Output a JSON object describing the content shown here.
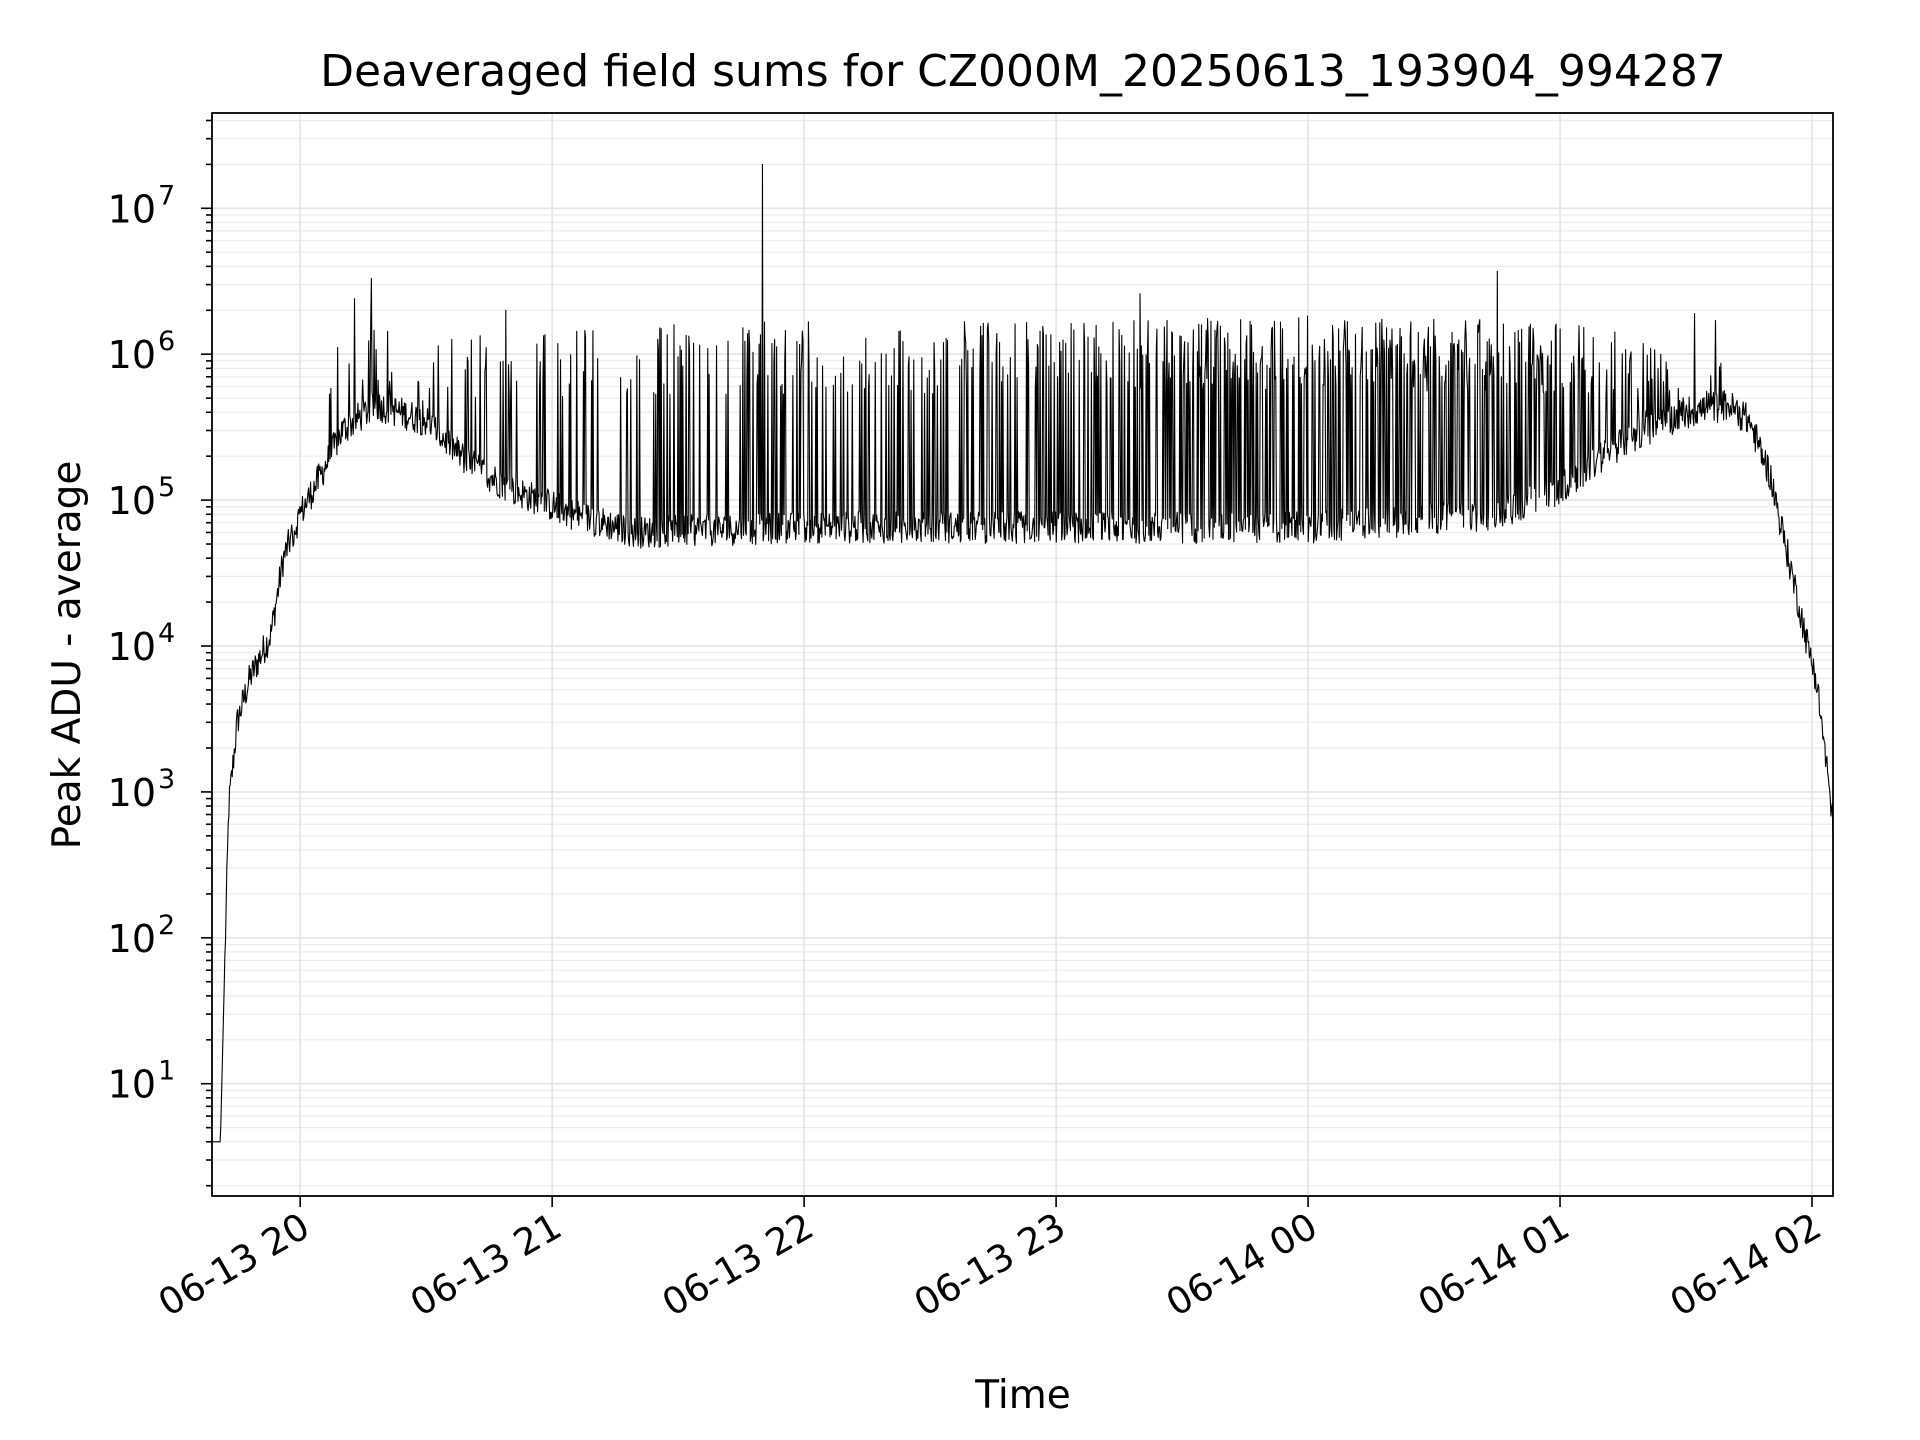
{
  "chart_data": {
    "type": "line",
    "title": "Deaveraged field sums for CZ000M_20250613_193904_994287",
    "xlabel": "Time",
    "ylabel": "Peak ADU - average",
    "yscale": "log",
    "grid": true,
    "line_color": "#000000",
    "xlim": [
      "2025-06-13 19:39",
      "2025-06-14 02:05"
    ],
    "ylim": [
      1.7,
      45000000
    ],
    "x_ticks": [
      {
        "t": "2025-06-13 20:00",
        "label": "06-13 20"
      },
      {
        "t": "2025-06-13 21:00",
        "label": "06-13 21"
      },
      {
        "t": "2025-06-13 22:00",
        "label": "06-13 22"
      },
      {
        "t": "2025-06-13 23:00",
        "label": "06-13 23"
      },
      {
        "t": "2025-06-14 00:00",
        "label": "06-14 00"
      },
      {
        "t": "2025-06-14 01:00",
        "label": "06-14 01"
      },
      {
        "t": "2025-06-14 02:00",
        "label": "06-14 02"
      }
    ],
    "y_ticks": [
      {
        "value": 10,
        "base": "10",
        "exp": "1"
      },
      {
        "value": 100,
        "base": "10",
        "exp": "2"
      },
      {
        "value": 1000,
        "base": "10",
        "exp": "3"
      },
      {
        "value": 10000,
        "base": "10",
        "exp": "4"
      },
      {
        "value": 100000,
        "base": "10",
        "exp": "5"
      },
      {
        "value": 1000000,
        "base": "10",
        "exp": "6"
      },
      {
        "value": 10000000,
        "base": "10",
        "exp": "7"
      }
    ],
    "envelope": [
      {
        "t": "2025-06-13 19:39",
        "y": 4
      },
      {
        "t": "2025-06-13 19:41",
        "y": 4
      },
      {
        "t": "2025-06-13 19:42",
        "y": 60
      },
      {
        "t": "2025-06-13 19:43",
        "y": 800
      },
      {
        "t": "2025-06-13 19:45",
        "y": 3000
      },
      {
        "t": "2025-06-13 19:48",
        "y": 6000
      },
      {
        "t": "2025-06-13 19:53",
        "y": 12000
      },
      {
        "t": "2025-06-13 19:56",
        "y": 40000
      },
      {
        "t": "2025-06-13 20:00",
        "y": 80000
      },
      {
        "t": "2025-06-13 20:05",
        "y": 150000
      },
      {
        "t": "2025-06-13 20:10",
        "y": 300000
      },
      {
        "t": "2025-06-13 20:18",
        "y": 450000
      },
      {
        "t": "2025-06-13 20:30",
        "y": 350000
      },
      {
        "t": "2025-06-13 20:40",
        "y": 180000
      },
      {
        "t": "2025-06-13 20:50",
        "y": 120000
      },
      {
        "t": "2025-06-13 21:05",
        "y": 80000
      },
      {
        "t": "2025-06-13 21:20",
        "y": 60000
      },
      {
        "t": "2025-06-13 22:00",
        "y": 65000
      },
      {
        "t": "2025-06-13 23:00",
        "y": 65000
      },
      {
        "t": "2025-06-14 00:00",
        "y": 65000
      },
      {
        "t": "2025-06-14 00:45",
        "y": 80000
      },
      {
        "t": "2025-06-14 01:00",
        "y": 120000
      },
      {
        "t": "2025-06-14 01:15",
        "y": 250000
      },
      {
        "t": "2025-06-14 01:30",
        "y": 400000
      },
      {
        "t": "2025-06-14 01:40",
        "y": 450000
      },
      {
        "t": "2025-06-14 01:45",
        "y": 350000
      },
      {
        "t": "2025-06-14 01:50",
        "y": 150000
      },
      {
        "t": "2025-06-14 01:53",
        "y": 60000
      },
      {
        "t": "2025-06-14 01:56",
        "y": 25000
      },
      {
        "t": "2025-06-14 01:59",
        "y": 10000
      },
      {
        "t": "2025-06-14 02:01",
        "y": 6000
      },
      {
        "t": "2025-06-14 02:03",
        "y": 2000
      },
      {
        "t": "2025-06-14 02:05",
        "y": 600
      }
    ],
    "spike_peak": [
      {
        "t": "2025-06-13 20:00",
        "y": 150000
      },
      {
        "t": "2025-06-13 20:10",
        "y": 1500000
      },
      {
        "t": "2025-06-13 20:30",
        "y": 900000
      },
      {
        "t": "2025-06-13 21:00",
        "y": 1100000
      },
      {
        "t": "2025-06-13 22:00",
        "y": 1200000
      },
      {
        "t": "2025-06-13 23:00",
        "y": 1200000
      },
      {
        "t": "2025-06-14 00:00",
        "y": 1300000
      },
      {
        "t": "2025-06-14 01:00",
        "y": 1200000
      },
      {
        "t": "2025-06-14 01:30",
        "y": 800000
      },
      {
        "t": "2025-06-14 01:48",
        "y": 450000
      }
    ],
    "spike_density": [
      {
        "t": "2025-06-13 20:00",
        "p": 0.05
      },
      {
        "t": "2025-06-13 20:30",
        "p": 0.12
      },
      {
        "t": "2025-06-13 21:30",
        "p": 0.15
      },
      {
        "t": "2025-06-13 22:30",
        "p": 0.25
      },
      {
        "t": "2025-06-13 23:30",
        "p": 0.4
      },
      {
        "t": "2025-06-14 00:30",
        "p": 0.5
      },
      {
        "t": "2025-06-14 01:00",
        "p": 0.35
      },
      {
        "t": "2025-06-14 01:30",
        "p": 0.1
      },
      {
        "t": "2025-06-14 01:50",
        "p": 0.0
      }
    ],
    "notable_spikes": [
      {
        "t": "2025-06-13 20:13",
        "y": 2400000
      },
      {
        "t": "2025-06-13 20:17",
        "y": 3300000
      },
      {
        "t": "2025-06-13 20:49",
        "y": 2000000
      },
      {
        "t": "2025-06-13 21:50",
        "y": 20000000
      },
      {
        "t": "2025-06-13 23:20",
        "y": 2600000
      },
      {
        "t": "2025-06-14 00:45",
        "y": 3700000
      },
      {
        "t": "2025-06-14 01:32",
        "y": 1900000
      },
      {
        "t": "2025-06-14 01:37",
        "y": 1700000
      }
    ]
  }
}
